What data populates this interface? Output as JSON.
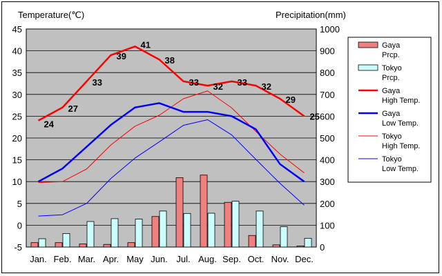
{
  "chart_data": {
    "type": "bar+line",
    "categories": [
      "Jan.",
      "Feb.",
      "Mar.",
      "Apr.",
      "May",
      "Jun.",
      "Jul.",
      "Aug.",
      "Sep.",
      "Oct.",
      "Nov.",
      "Dec."
    ],
    "ylabel_left": "Temperature(℃)",
    "ylabel_right": "Precipitation(mm)",
    "ylim_left": [
      -5,
      45
    ],
    "ylim_right": [
      0,
      1000
    ],
    "yticks_left": [
      -5,
      0,
      5,
      10,
      15,
      20,
      25,
      30,
      35,
      40,
      45
    ],
    "yticks_right": [
      0,
      100,
      200,
      300,
      400,
      500,
      600,
      700,
      800,
      900,
      1000
    ],
    "grid": "horizontal",
    "legend_position": "right",
    "bar_series": [
      {
        "name": "Gaya Prcp.",
        "axis": "right",
        "color": "#f08080",
        "values": [
          20,
          20,
          14,
          12,
          20,
          140,
          318,
          330,
          205,
          53,
          10,
          5
        ]
      },
      {
        "name": "Tokyo Prcp.",
        "axis": "right",
        "color": "#ccffff",
        "values": [
          38,
          62,
          117,
          130,
          128,
          165,
          154,
          155,
          210,
          165,
          93,
          40
        ]
      }
    ],
    "line_series": [
      {
        "name": "Gaya High Temp.",
        "axis": "left",
        "color": "#ff0000",
        "width": 2.5,
        "values": [
          24,
          27,
          33,
          39,
          41,
          38,
          33,
          32,
          33,
          32,
          29,
          25
        ],
        "labels": [
          "24",
          "27",
          "33",
          "39",
          "41",
          "38",
          "33",
          "32",
          "33",
          "32",
          "29",
          "25"
        ]
      },
      {
        "name": "Gaya Low Temp.",
        "axis": "left",
        "color": "#0000ff",
        "width": 2.5,
        "values": [
          10,
          13,
          18,
          23,
          27,
          28,
          26,
          26,
          25,
          22,
          14,
          10
        ]
      },
      {
        "name": "Tokyo High Temp.",
        "axis": "left",
        "color": "#ff0000",
        "width": 1,
        "values": [
          9.8,
          10,
          12.9,
          18.4,
          22.7,
          25.2,
          29,
          30.8,
          26.9,
          21.5,
          16.3,
          12
        ]
      },
      {
        "name": "Tokyo Low Temp.",
        "axis": "left",
        "color": "#0000ff",
        "width": 1,
        "values": [
          2.1,
          2.4,
          5,
          10.7,
          15.4,
          19.1,
          22.9,
          24.2,
          20.7,
          15.1,
          9.6,
          4.6
        ]
      }
    ],
    "legend": [
      {
        "kind": "bar",
        "color": "#f08080",
        "line1": "Gaya",
        "line2": "Prcp."
      },
      {
        "kind": "bar",
        "color": "#ccffff",
        "line1": "Tokyo",
        "line2": "Prcp."
      },
      {
        "kind": "line",
        "color": "#ff0000",
        "width": 2.5,
        "line1": "Gaya",
        "line2": "High Temp."
      },
      {
        "kind": "line",
        "color": "#0000ff",
        "width": 2.5,
        "line1": "Gaya",
        "line2": "Low Temp."
      },
      {
        "kind": "line",
        "color": "#ff0000",
        "width": 1,
        "line1": "Tokyo",
        "line2": "High Temp."
      },
      {
        "kind": "line",
        "color": "#0000ff",
        "width": 1,
        "line1": "Tokyo",
        "line2": "Low Temp."
      }
    ]
  }
}
